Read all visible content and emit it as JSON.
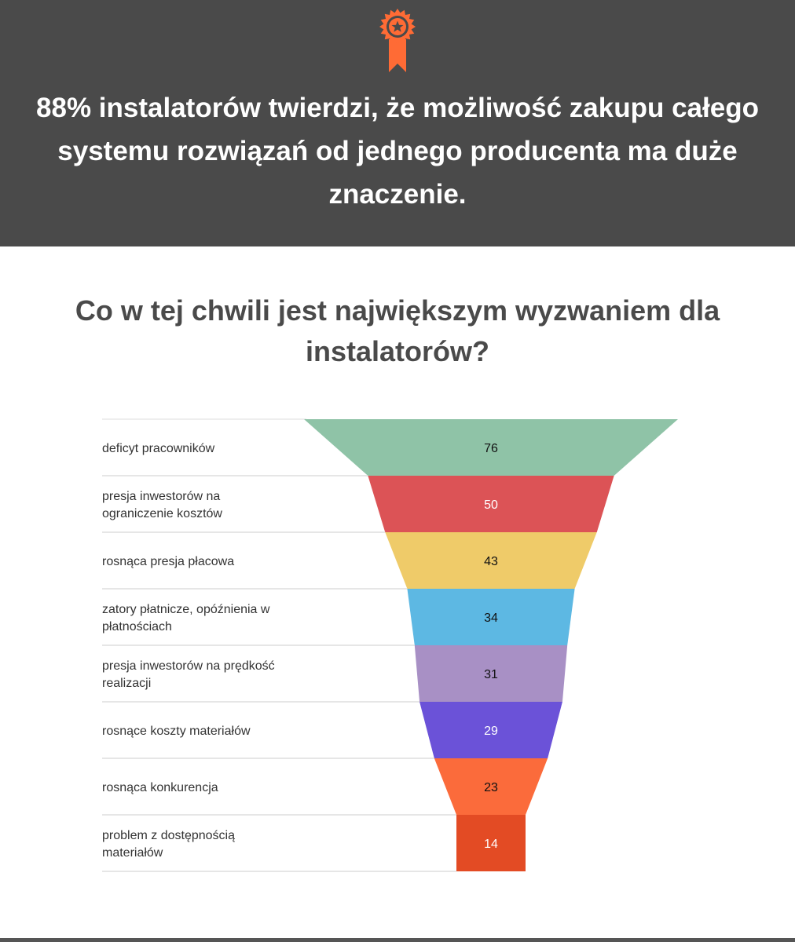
{
  "header": {
    "headline": "88% instalatorów twierdzi, że możliwość zakupu całego systemu rozwiązań od jednego producenta ma duże znaczenie.",
    "icon": "award-ribbon-icon",
    "background_color": "#4a4a4a",
    "icon_color": "#ff6b35"
  },
  "chart_data": {
    "type": "funnel",
    "title": "Co w tej chwili jest największym wyzwaniem dla instalatorów?",
    "categories": [
      "deficyt pracowników",
      "presja inwestorów na ograniczenie kosztów",
      "rosnąca presja płacowa",
      "zatory płatnicze, opóźnienia w płatnościach",
      "presja inwestorów na prędkość realizacji",
      "rosnące koszty materiałów",
      "rosnąca konkurencja",
      "problem z dostępnością materiałów"
    ],
    "values": [
      76,
      50,
      43,
      34,
      31,
      29,
      23,
      14
    ],
    "colors": [
      "#8fc3a7",
      "#dc5356",
      "#efcb69",
      "#5db8e3",
      "#a890c5",
      "#6b52d8",
      "#fb6b3b",
      "#e34b24"
    ],
    "value_label_colors": [
      "#111111",
      "#ffffff",
      "#111111",
      "#111111",
      "#111111",
      "#ffffff",
      "#111111",
      "#ffffff"
    ]
  }
}
